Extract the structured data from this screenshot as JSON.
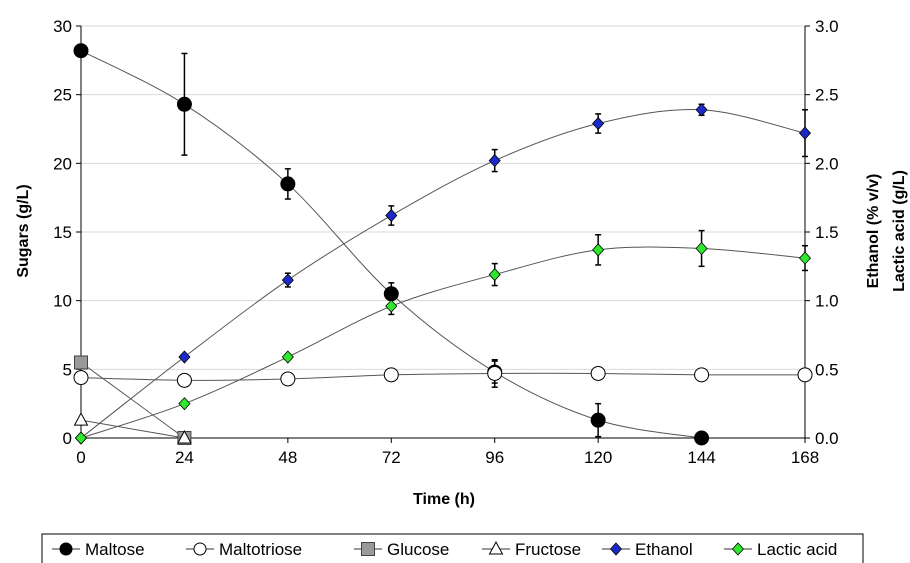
{
  "chart_data": {
    "type": "line",
    "xlabel": "Time (h)",
    "ylabel_left": "Sugars (g/L)",
    "ylabel_right_line1": "Ethanol (% v/v)",
    "ylabel_right_line2": "Lactic acid (g/L)",
    "x_ticks": [
      "0",
      "24",
      "48",
      "72",
      "96",
      "120",
      "144",
      "168"
    ],
    "y_left_ticks": [
      "0",
      "5",
      "10",
      "15",
      "20",
      "25",
      "30"
    ],
    "y_right_ticks": [
      "0.0",
      "0.5",
      "1.0",
      "1.5",
      "2.0",
      "2.5",
      "3.0"
    ],
    "xlim": [
      0,
      168
    ],
    "ylim_left": [
      0,
      30
    ],
    "ylim_right": [
      0,
      3
    ],
    "grid": "horizontal",
    "legend_position": "bottom",
    "series": [
      {
        "name": "Maltose",
        "axis": "left",
        "marker": "circle",
        "fill": "#000000",
        "stroke": "#000000",
        "x": [
          0,
          24,
          48,
          72,
          96,
          120,
          144
        ],
        "y": [
          28.2,
          24.3,
          18.5,
          10.5,
          4.8,
          1.3,
          0.0
        ],
        "err": [
          0,
          3.7,
          1.1,
          0.8,
          0.8,
          1.2,
          0
        ]
      },
      {
        "name": "Maltotriose",
        "axis": "left",
        "marker": "circle",
        "fill": "#ffffff",
        "stroke": "#000000",
        "x": [
          0,
          24,
          48,
          72,
          96,
          120,
          144,
          168
        ],
        "y": [
          4.4,
          4.2,
          4.3,
          4.6,
          4.7,
          4.7,
          4.6,
          4.6
        ],
        "err": [
          0,
          0,
          0,
          0,
          1.0,
          0,
          0,
          0
        ]
      },
      {
        "name": "Glucose",
        "axis": "left",
        "marker": "square",
        "fill": "#999999",
        "stroke": "#444444",
        "x": [
          0,
          24
        ],
        "y": [
          5.5,
          0.0
        ],
        "err": [
          0,
          0
        ]
      },
      {
        "name": "Fructose",
        "axis": "left",
        "marker": "triangle",
        "fill": "#ffffff",
        "stroke": "#000000",
        "x": [
          0,
          24
        ],
        "y": [
          1.3,
          0.0
        ],
        "err": [
          0,
          0
        ]
      },
      {
        "name": "Ethanol",
        "axis": "right",
        "marker": "diamond",
        "fill": "#1c2bc8",
        "stroke": "#000000",
        "x": [
          0,
          24,
          48,
          72,
          96,
          120,
          144,
          168
        ],
        "y": [
          0.0,
          0.59,
          1.15,
          1.62,
          2.02,
          2.29,
          2.39,
          2.22
        ],
        "err": [
          0,
          0,
          0.05,
          0.07,
          0.08,
          0.07,
          0.04,
          0.17
        ]
      },
      {
        "name": "Lactic acid",
        "axis": "right",
        "marker": "diamond",
        "fill": "#2ee82e",
        "stroke": "#000000",
        "x": [
          0,
          24,
          48,
          72,
          96,
          120,
          144,
          168
        ],
        "y": [
          0.0,
          0.25,
          0.59,
          0.96,
          1.19,
          1.37,
          1.38,
          1.31
        ],
        "err": [
          0,
          0,
          0,
          0.06,
          0.08,
          0.11,
          0.13,
          0.09
        ]
      }
    ]
  }
}
